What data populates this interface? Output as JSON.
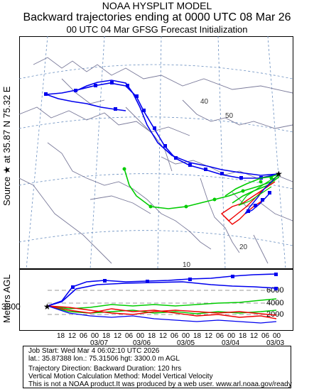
{
  "header": {
    "line1": "NOAA HYSPLIT MODEL",
    "line2": "Backward trajectories ending at 0000 UTC 08 Mar 26",
    "line3": "00 UTC 04 Mar    GFSG  Forecast Initialization"
  },
  "side_label": {
    "source": "Source ★  at   35.87 N   75.32 E",
    "meters": "Meters AGL"
  },
  "map": {
    "grid_labels": [
      "40",
      "50",
      "20",
      "10"
    ],
    "source_lat": 35.87,
    "source_lon": 75.32
  },
  "vertical_panel": {
    "start_height_label": "3300",
    "y_ticks": [
      "6000",
      "4000",
      "2000"
    ],
    "hour_labels": [
      "18",
      "12",
      "06",
      "00",
      "18",
      "12",
      "06",
      "00",
      "18",
      "12",
      "06",
      "00",
      "18",
      "12",
      "06",
      "00",
      "18",
      "12",
      "06",
      "00"
    ],
    "date_labels": [
      "03/07",
      "03/06",
      "03/05",
      "03/04",
      "03/03"
    ]
  },
  "footer": {
    "job_start": "Job Start: Wed Mar  4 06:02:10 UTC 2026",
    "location": "lat.: 35.87388   lon.: 75.31506    hgt: 3300.0 m AGL",
    "direction": "Trajectory Direction: Backward       Duration: 120 hrs",
    "vertical_motion": "Vertical Motion Calculation Method: Model Vertical Velocity",
    "disclaimer": "This is not a NOAA product.It was produced by a web user. www.arl.noaa.gov/ready"
  },
  "colors": {
    "blue": "#0000ee",
    "green": "#00cc00",
    "red": "#ee0000",
    "map_line": "#7a7a9a",
    "grid": "#6699cc"
  }
}
